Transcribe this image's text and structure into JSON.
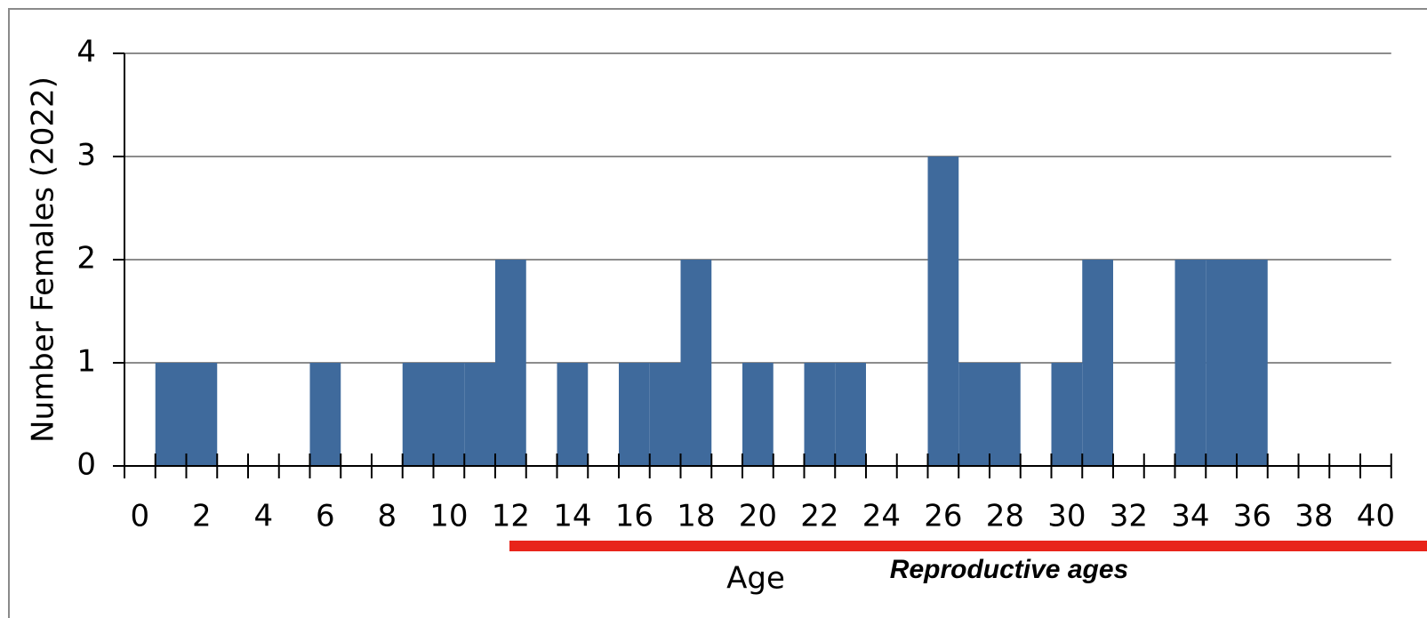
{
  "chart_data": {
    "type": "bar",
    "xlabel": "Age",
    "ylabel": "Number Females (2022)",
    "annotation": "Reproductive ages",
    "categories": [
      "0",
      null,
      "2",
      null,
      "4",
      null,
      "6",
      null,
      "8",
      null,
      "10",
      null,
      "12",
      null,
      "14",
      null,
      "16",
      null,
      "18",
      null,
      "20",
      null,
      "22",
      null,
      "24",
      null,
      "26",
      null,
      "28",
      null,
      "30",
      null,
      "32",
      null,
      "34",
      null,
      "36",
      null,
      "38",
      null,
      "40"
    ],
    "values": [
      0,
      1,
      1,
      0,
      0,
      0,
      1,
      0,
      0,
      1,
      1,
      1,
      2,
      0,
      1,
      0,
      1,
      1,
      2,
      0,
      1,
      0,
      1,
      1,
      0,
      0,
      3,
      1,
      1,
      0,
      1,
      2,
      0,
      0,
      2,
      2,
      2,
      0,
      0,
      0,
      0
    ],
    "color": "#3f6a9c",
    "ylim": [
      0,
      4
    ],
    "yticks": [
      0,
      1,
      2,
      3,
      4
    ],
    "grid": true
  }
}
